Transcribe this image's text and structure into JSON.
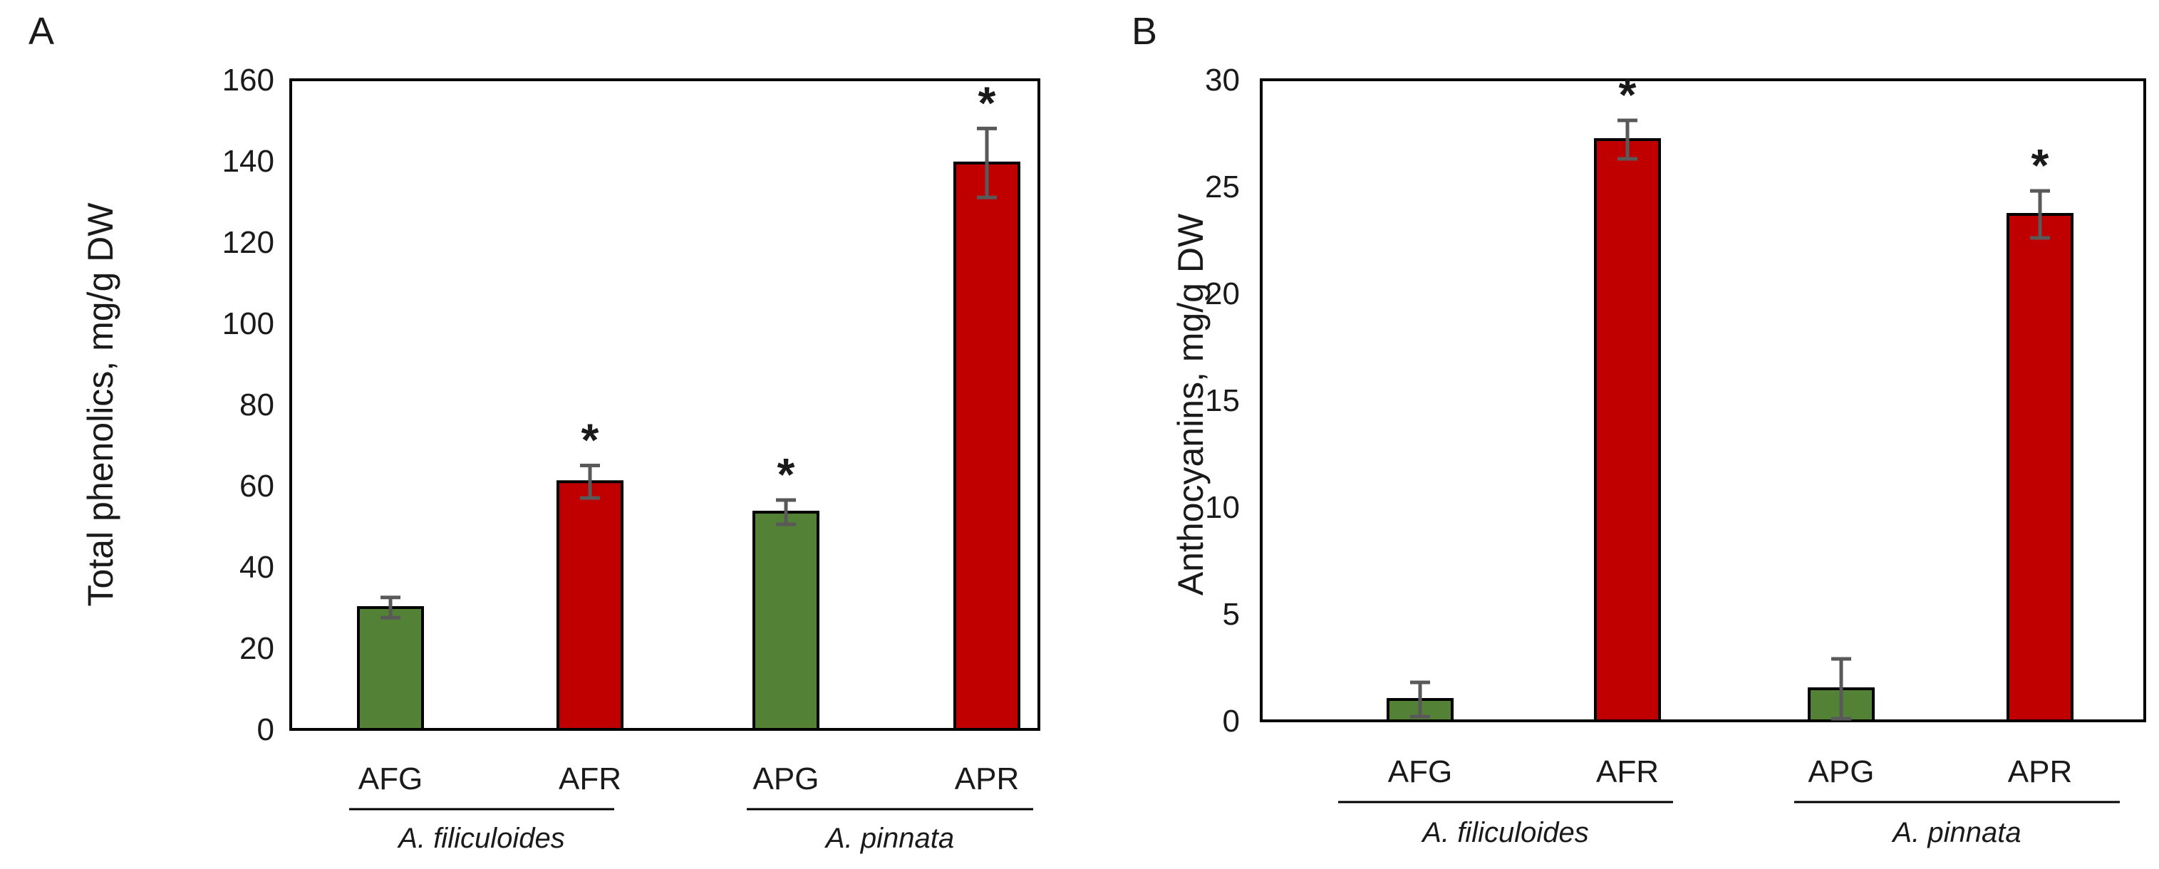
{
  "colors": {
    "green": "#538135",
    "red": "#c00000",
    "error_bar": "#595959",
    "axis": "#000000"
  },
  "chart_data": [
    {
      "panel_label": "A",
      "type": "bar",
      "ylabel": "Total phenolics, mg/g DW",
      "ylim": [
        0,
        160
      ],
      "yticks": [
        "0",
        "20",
        "40",
        "60",
        "80",
        "100",
        "120",
        "140",
        "160"
      ],
      "ytick_values": [
        0,
        20,
        40,
        60,
        80,
        100,
        120,
        140,
        160
      ],
      "frame": "full",
      "categories": [
        "AFG",
        "AFR",
        "APG",
        "APR"
      ],
      "values": [
        30,
        61,
        53.5,
        139.5
      ],
      "errors": [
        2.5,
        4,
        3,
        8.5
      ],
      "bar_colors": [
        "green",
        "red",
        "green",
        "red"
      ],
      "significance": [
        "",
        "*",
        "*",
        "*"
      ],
      "groups": [
        {
          "label": "A. filiculoides",
          "members": [
            0,
            1
          ]
        },
        {
          "label": "A. pinnata",
          "members": [
            2,
            3
          ]
        }
      ]
    },
    {
      "panel_label": "B",
      "type": "bar",
      "ylabel": "Anthocyanins, mg/g DW",
      "ylim": [
        0,
        30
      ],
      "yticks": [
        "0",
        "5",
        "10",
        "15",
        "20",
        "25",
        "30"
      ],
      "ytick_values": [
        0,
        5,
        10,
        15,
        20,
        25,
        30
      ],
      "frame": "full",
      "categories": [
        "AFG",
        "AFR",
        "APG",
        "APR"
      ],
      "values": [
        1,
        27.2,
        1.5,
        23.7
      ],
      "errors": [
        0.8,
        0.9,
        1.4,
        1.1
      ],
      "bar_colors": [
        "green",
        "red",
        "green",
        "red"
      ],
      "significance": [
        "",
        "*",
        "",
        "*"
      ],
      "groups": [
        {
          "label": "A. filiculoides",
          "members": [
            0,
            1
          ]
        },
        {
          "label": "A. pinnata",
          "members": [
            2,
            3
          ]
        }
      ]
    }
  ]
}
